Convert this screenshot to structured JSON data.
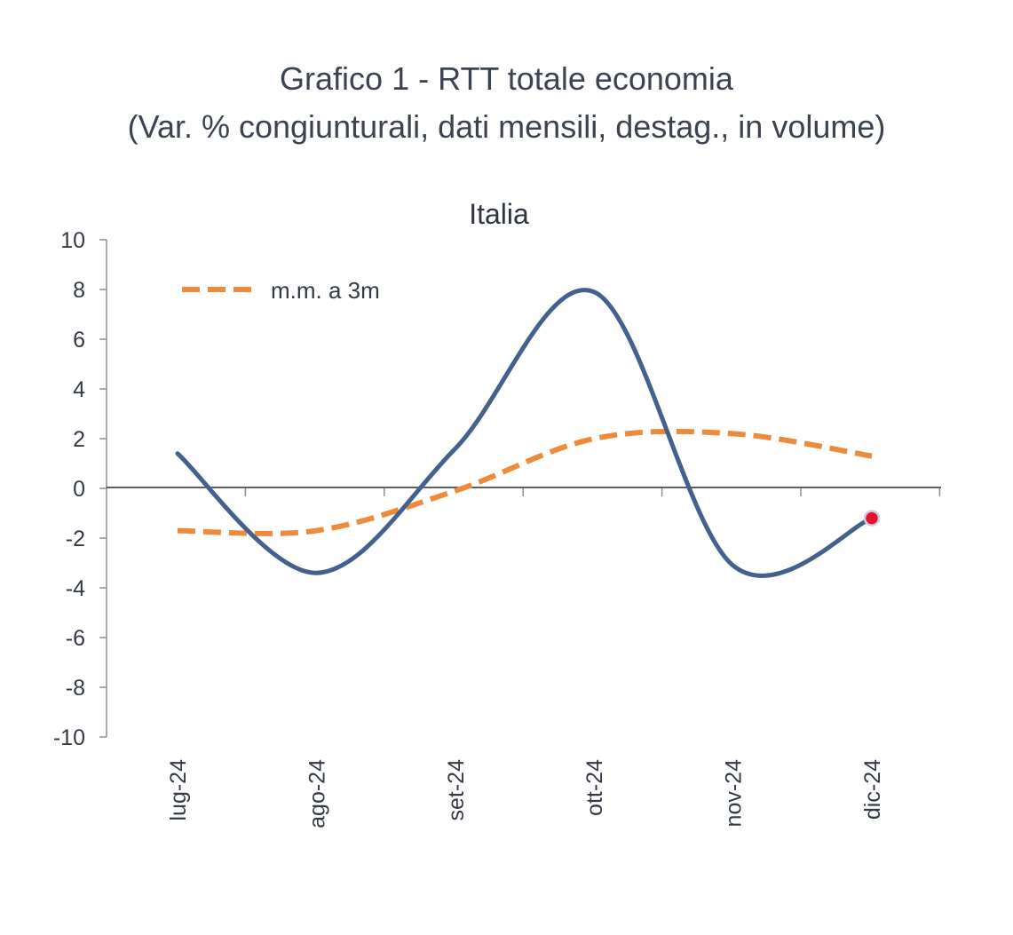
{
  "title": "Grafico 1 - RTT totale economia",
  "subtitle": "(Var. % congiunturali, dati mensili, destag., in volume)",
  "chart_data": {
    "type": "line",
    "title": "Italia",
    "categories": [
      "lug-24",
      "ago-24",
      "set-24",
      "ott-24",
      "nov-24",
      "dic-24"
    ],
    "ylim": [
      -10,
      10
    ],
    "yticks": [
      10,
      8,
      6,
      4,
      2,
      0,
      -2,
      -4,
      -6,
      -8,
      -10
    ],
    "yticks_labels": [
      "10",
      "8",
      "6",
      "4",
      "2",
      "0",
      "-2",
      "-4",
      "-6",
      "-8",
      "-10"
    ],
    "series": [
      {
        "name": "RTT",
        "values": [
          1.4,
          -3.4,
          1.6,
          7.9,
          -3.1,
          -1.2
        ],
        "color": "#44618e",
        "style": "solid"
      },
      {
        "name": "m.m. a 3m",
        "values": [
          -1.7,
          -1.7,
          -0.1,
          2.0,
          2.2,
          1.3
        ],
        "color": "#ee8a3c",
        "style": "dashed"
      }
    ],
    "legend": {
      "label": "m.m. a 3m",
      "position": "top-left"
    },
    "highlight_point": {
      "series": "RTT",
      "category": "dic-24",
      "color": "#e8112d"
    }
  }
}
